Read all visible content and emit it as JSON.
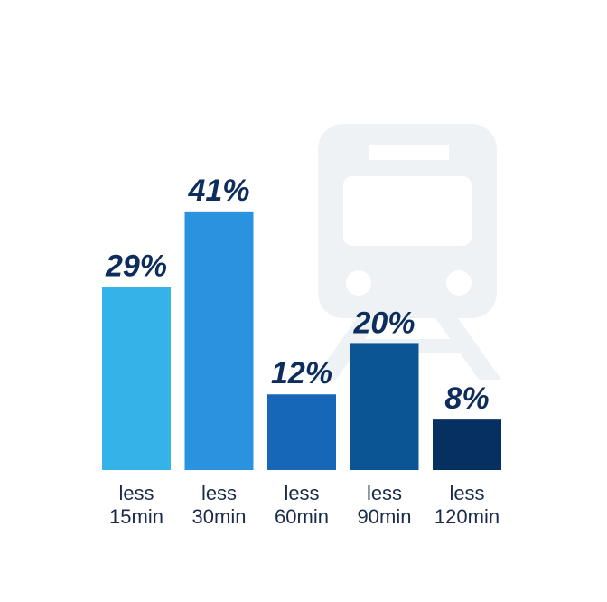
{
  "chart_data": {
    "type": "bar",
    "categories": [
      "less 15min",
      "less 30min",
      "less 60min",
      "less 90min",
      "less 120min"
    ],
    "values": [
      29,
      41,
      12,
      20,
      8
    ],
    "value_labels": [
      "29%",
      "41%",
      "12%",
      "20%",
      "8%"
    ],
    "colors": [
      "#35b3e8",
      "#2a93e0",
      "#1667b8",
      "#0c5595",
      "#06305f"
    ],
    "ylim": [
      0,
      50
    ]
  }
}
